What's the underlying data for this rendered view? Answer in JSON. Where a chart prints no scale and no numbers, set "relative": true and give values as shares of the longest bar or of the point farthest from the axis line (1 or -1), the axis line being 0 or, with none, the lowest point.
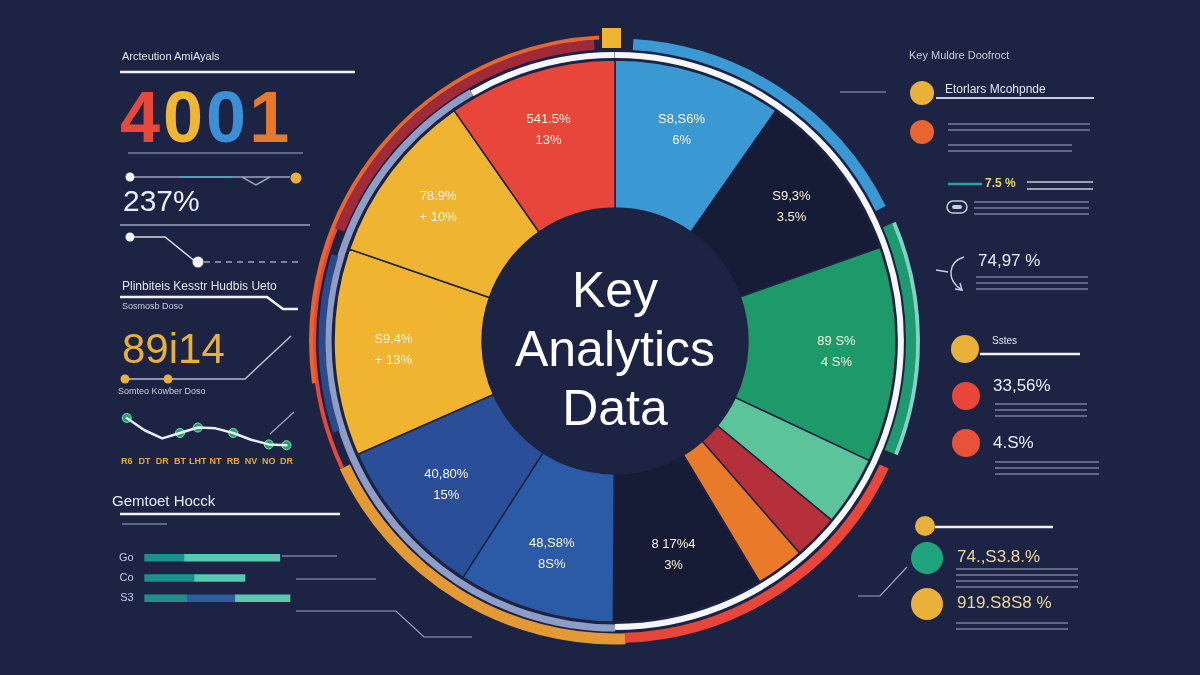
{
  "chart_data": [
    {
      "type": "donut",
      "title": "Key Analytics Data",
      "categories": [
        "S8,S6%\n6%",
        "S9,3%\n3.5%",
        "89 S%\n4 S%",
        null,
        null,
        null,
        "8 17%4\n3%",
        "48,S8%\n8S%",
        "40,80%\n15%",
        "S9.4%\n+ 13%",
        "78.9%\n+ 10%",
        "541.5%\n13%"
      ],
      "values": [
        9.7,
        9.9,
        12.4,
        4.0,
        2.6,
        2.8,
        8.7,
        9.0,
        9.3,
        11.9,
        10.0,
        9.7
      ],
      "colors": [
        "#3a98d2",
        "#161b36",
        "#1e9a6a",
        "#5bc49a",
        "#b5303b",
        "#e97a2a",
        "#161b36",
        "#2b5ba7",
        "#2a4f98",
        "#f0b431",
        "#efb532",
        "#e8463a"
      ],
      "annotations": [
        "Arcteution AmiAyals",
        "4001",
        "237%",
        "Plinbiteis Kesstr Hudbis Ueto",
        "Sosmosb Doso",
        "89i14",
        "Key Muldre Doofroct",
        "Etorlars Mcohpnde",
        "7.5 %",
        "74,97 %",
        "Sstes",
        "33,56%",
        "4.S%",
        "74.,S3.8.%",
        "919.S8S8 %"
      ]
    },
    {
      "type": "line",
      "title": "Somteo Kowber Doso",
      "categories": [
        "R6",
        "DT",
        "DR",
        "BT",
        "LHT",
        "NT",
        "RB",
        "NV",
        "NO",
        "DR"
      ],
      "relative": true,
      "series": [
        {
          "type": "line",
          "color": "#e6edf3",
          "values": [
            1,
            0.55,
            0.25,
            0.45,
            0.65,
            0.62,
            0.45,
            0.2,
            0.03,
            0
          ]
        },
        {
          "type": "scatter",
          "color": "#22a06b",
          "marker": "circle",
          "values": [
            1,
            null,
            null,
            0.45,
            0.65,
            null,
            0.45,
            null,
            0.03,
            0
          ]
        }
      ]
    },
    {
      "type": "bar",
      "title": "Gemtoet Hocck",
      "orientation": "horizontal",
      "stacked": true,
      "relative": true,
      "categories": [
        "Go",
        "Co",
        "S3"
      ],
      "series": [
        {
          "color": "#1f8f8c",
          "values": [
            0.27,
            0.34,
            0.29
          ]
        },
        {
          "color": "#2a5f9e",
          "values": [
            null,
            null,
            0.33
          ]
        },
        {
          "color": "#5bc8b2",
          "values": [
            0.66,
            0.35,
            0.38
          ]
        }
      ]
    }
  ]
}
